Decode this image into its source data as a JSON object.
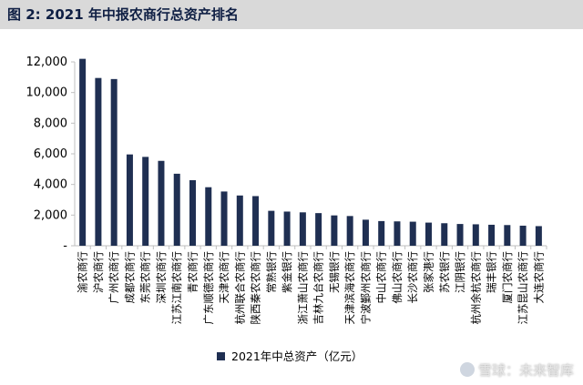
{
  "header": {
    "title": "图 2:  2021 年中报农商行总资产排名"
  },
  "watermark": {
    "text": "雪球：未来智库"
  },
  "colors": {
    "bar": "#1f2f52",
    "axis": "#bfbfbf",
    "title_bg": "#d9d9d9"
  },
  "chart_data": {
    "type": "bar",
    "title": "",
    "xlabel": "",
    "ylabel": "",
    "ylim": [
      0,
      12000
    ],
    "yticks": [
      0,
      2000,
      4000,
      6000,
      8000,
      10000,
      12000
    ],
    "ytick_labels": [
      "-",
      "2,000",
      "4,000",
      "6,000",
      "8,000",
      "10,000",
      "12,000"
    ],
    "grid": false,
    "legend_position": "bottom",
    "categories": [
      "渝农商行",
      "沪农商行",
      "广州农商行",
      "成都农商行",
      "东莞农商行",
      "深圳农商行",
      "江苏江南农商行",
      "青农商行",
      "广东顺德农商行",
      "天津农商行",
      "杭州联合农商行",
      "陕西秦农农商行",
      "常熟银行",
      "紫金银行",
      "浙江萧山农商行",
      "吉林九台农商行",
      "无锡银行",
      "天津滨海农商行",
      "宁波鄞州农商行",
      "中山农商行",
      "佛山农商行",
      "长沙农商行",
      "张家港行",
      "苏农银行",
      "江阴银行",
      "杭州余杭农商行",
      "瑞丰银行",
      "厦门农商行",
      "江苏昆山农商行",
      "大连农商行"
    ],
    "series": [
      {
        "name": "2021年中总资产（亿元）",
        "values": [
          12200,
          10950,
          10880,
          5960,
          5800,
          5540,
          4700,
          4280,
          3820,
          3540,
          3280,
          3240,
          2280,
          2230,
          2180,
          2130,
          1980,
          1940,
          1700,
          1610,
          1590,
          1570,
          1510,
          1470,
          1420,
          1400,
          1370,
          1350,
          1310,
          1280
        ]
      }
    ]
  }
}
